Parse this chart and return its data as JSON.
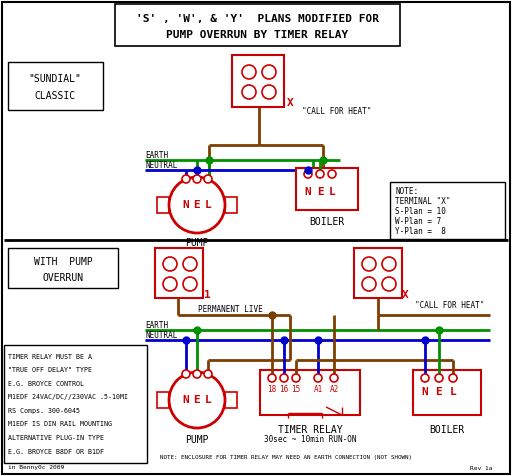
{
  "title_line1": "'S' , 'W', & 'Y'  PLANS MODIFIED FOR",
  "title_line2": "PUMP OVERRUN BY TIMER RELAY",
  "bg_color": "#ffffff",
  "red": "#cc0000",
  "green": "#009000",
  "blue": "#0000cc",
  "brown": "#7B3F00",
  "black": "#000000",
  "note_text": [
    "NOTE:",
    "TERMINAL \"X\"",
    "S-Plan = 10",
    "W-Plan = 7",
    "Y-Plan =  8"
  ],
  "timer_note": "30sec ~ 10min RUN-ON",
  "bottom_note": "NOTE: ENCLOSURE FOR TIMER RELAY MAY NEED AN EARTH CONNECTION (NOT SHOWN)",
  "timer_relay_text": [
    "TIMER RELAY MUST BE A",
    "\"TRUE OFF DELAY\" TYPE",
    "E.G. BROYCE CONTROL",
    "M1EDF 24VAC/DC//230VAC .5-10MI",
    "RS Comps. 300-6045",
    "M1EDF IS DIN RAIL MOUNTING",
    "ALTERNATIVE PLUG-IN TYPE",
    "E.G. BROYCE B8DF OR B1DF"
  ],
  "copyright": "in Benny0c 2009",
  "rev": "Rev 1a"
}
